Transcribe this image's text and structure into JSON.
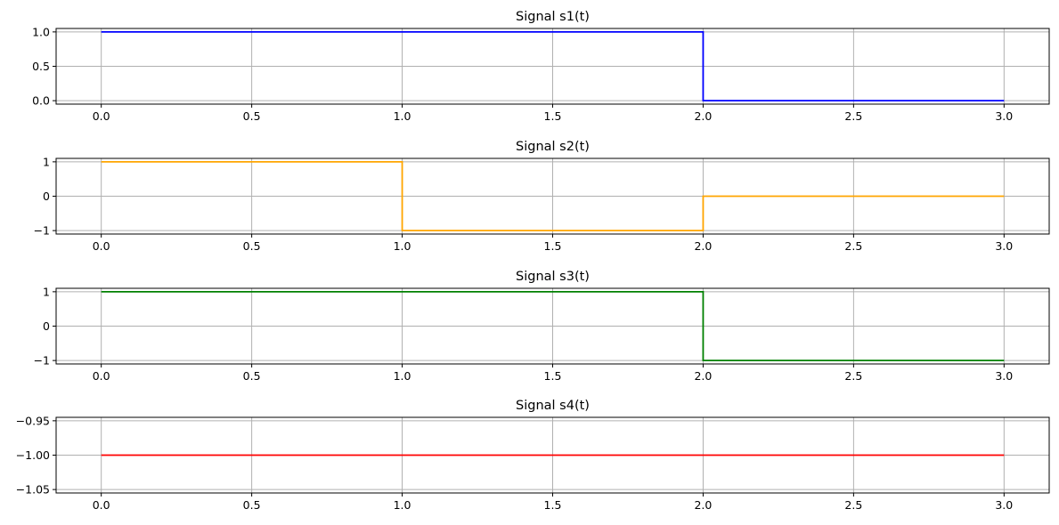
{
  "chart_data": [
    {
      "type": "line",
      "title": "Signal s1(t)",
      "xlabel": "",
      "ylabel": "",
      "xlim": [
        -0.15,
        3.15
      ],
      "ylim": [
        -0.05,
        1.05
      ],
      "xticks": [
        0.0,
        0.5,
        1.0,
        1.5,
        2.0,
        2.5,
        3.0
      ],
      "xtick_labels": [
        "0.0",
        "0.5",
        "1.0",
        "1.5",
        "2.0",
        "2.5",
        "3.0"
      ],
      "yticks": [
        0.0,
        0.5,
        1.0
      ],
      "ytick_labels": [
        "0.0",
        "0.5",
        "1.0"
      ],
      "grid": true,
      "series": [
        {
          "color": "#0000ff",
          "x": [
            0,
            2.0,
            2.0,
            3.0
          ],
          "y": [
            1,
            1,
            0,
            0
          ]
        }
      ]
    },
    {
      "type": "line",
      "title": "Signal s2(t)",
      "xlabel": "",
      "ylabel": "",
      "xlim": [
        -0.15,
        3.15
      ],
      "ylim": [
        -1.1,
        1.1
      ],
      "xticks": [
        0.0,
        0.5,
        1.0,
        1.5,
        2.0,
        2.5,
        3.0
      ],
      "xtick_labels": [
        "0.0",
        "0.5",
        "1.0",
        "1.5",
        "2.0",
        "2.5",
        "3.0"
      ],
      "yticks": [
        -1,
        0,
        1
      ],
      "ytick_labels": [
        "−1",
        "0",
        "1"
      ],
      "grid": true,
      "series": [
        {
          "color": "#ffa500",
          "x": [
            0,
            1.0,
            1.0,
            2.0,
            2.0,
            3.0
          ],
          "y": [
            1,
            1,
            -1,
            -1,
            0,
            0
          ]
        }
      ]
    },
    {
      "type": "line",
      "title": "Signal s3(t)",
      "xlabel": "",
      "ylabel": "",
      "xlim": [
        -0.15,
        3.15
      ],
      "ylim": [
        -1.1,
        1.1
      ],
      "xticks": [
        0.0,
        0.5,
        1.0,
        1.5,
        2.0,
        2.5,
        3.0
      ],
      "xtick_labels": [
        "0.0",
        "0.5",
        "1.0",
        "1.5",
        "2.0",
        "2.5",
        "3.0"
      ],
      "yticks": [
        -1,
        0,
        1
      ],
      "ytick_labels": [
        "−1",
        "0",
        "1"
      ],
      "grid": true,
      "series": [
        {
          "color": "#008000",
          "x": [
            0,
            2.0,
            2.0,
            3.0
          ],
          "y": [
            1,
            1,
            -1,
            -1
          ]
        }
      ]
    },
    {
      "type": "line",
      "title": "Signal s4(t)",
      "xlabel": "",
      "ylabel": "",
      "xlim": [
        -0.15,
        3.15
      ],
      "ylim": [
        -1.055,
        -0.945
      ],
      "xticks": [
        0.0,
        0.5,
        1.0,
        1.5,
        2.0,
        2.5,
        3.0
      ],
      "xtick_labels": [
        "0.0",
        "0.5",
        "1.0",
        "1.5",
        "2.0",
        "2.5",
        "3.0"
      ],
      "yticks": [
        -1.05,
        -1.0,
        -0.95
      ],
      "ytick_labels": [
        "−1.05",
        "−1.00",
        "−0.95"
      ],
      "grid": true,
      "series": [
        {
          "color": "#ff0000",
          "x": [
            0,
            3.0
          ],
          "y": [
            -1,
            -1
          ]
        }
      ]
    }
  ]
}
